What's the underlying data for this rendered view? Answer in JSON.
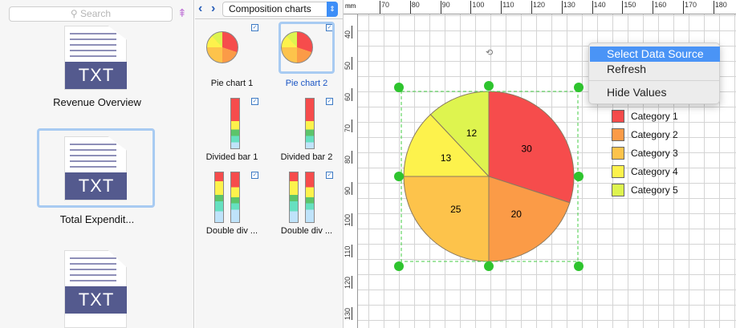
{
  "search": {
    "placeholder": "Search"
  },
  "files": [
    {
      "label": "Revenue Overview",
      "ext": "TXT"
    },
    {
      "label": "Total Expendit...",
      "ext": "TXT"
    },
    {
      "label": "",
      "ext": "TXT"
    }
  ],
  "library": {
    "selected": "Composition charts",
    "items": [
      {
        "label": "Pie chart 1"
      },
      {
        "label": "Pie chart 2"
      },
      {
        "label": "Divided bar 1"
      },
      {
        "label": "Divided bar 2"
      },
      {
        "label": "Double div ..."
      },
      {
        "label": "Double div ..."
      }
    ]
  },
  "ruler": {
    "unit": "mm",
    "h": [
      "70",
      "80",
      "90",
      "100",
      "110",
      "120",
      "130",
      "140",
      "150",
      "160",
      "170",
      "180"
    ],
    "v": [
      "40",
      "50",
      "60",
      "70",
      "80",
      "90",
      "100",
      "110",
      "120",
      "130"
    ]
  },
  "menu": {
    "items": [
      "Select Data Source",
      "Refresh",
      "Hide Values"
    ]
  },
  "chart_data": {
    "type": "pie",
    "values": [
      30,
      20,
      25,
      13,
      12
    ],
    "categories": [
      "Category 1",
      "Category 2",
      "Category 3",
      "Category 4",
      "Category 5"
    ],
    "colors": [
      "#f64c4c",
      "#fb9b47",
      "#fdc34b",
      "#fdf24c",
      "#def44f"
    ],
    "legend": "right"
  }
}
